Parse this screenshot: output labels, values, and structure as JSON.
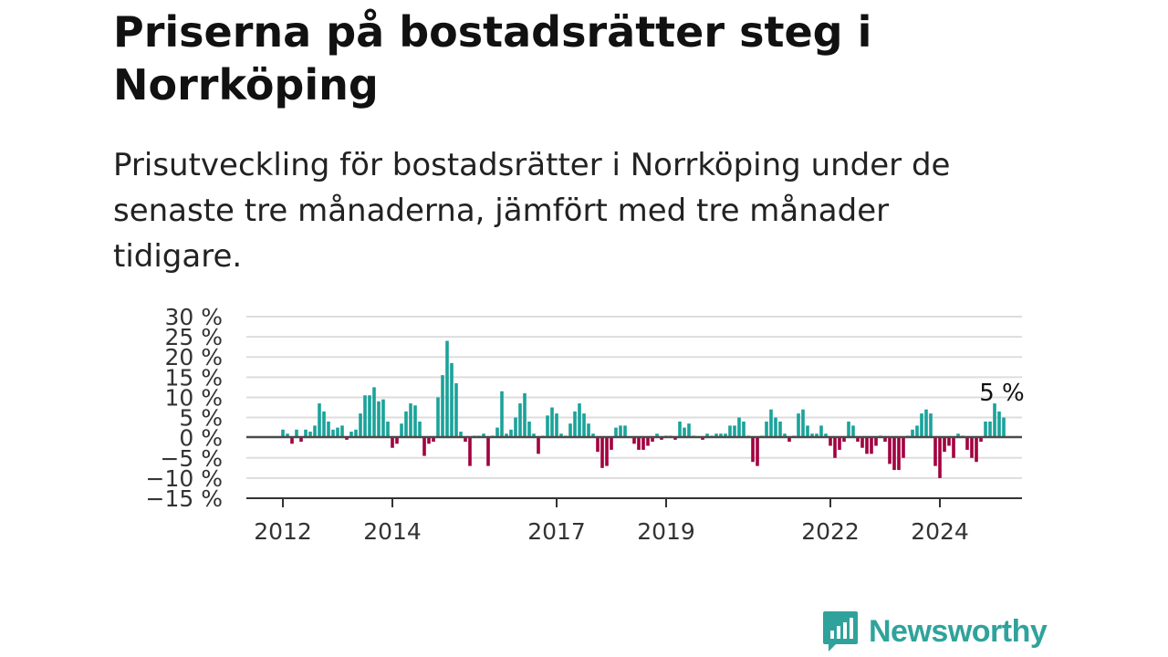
{
  "header": {
    "title": "Priserna på bostadsrätter steg i Norrköping",
    "subtitle": "Prisutveckling för bostadsrätter i Norrköping under de senaste tre månaderna, jämfört med tre månader tidigare."
  },
  "brand": {
    "name": "Newsworthy",
    "color": "#2fa39b",
    "icon": "newsworthy-logo-icon"
  },
  "colors": {
    "positive": "#1aa39a",
    "negative": "#a3003f",
    "grid": "#dddddd",
    "zero_line": "#555555"
  },
  "chart_data": {
    "type": "bar",
    "ylim": [
      -15,
      30
    ],
    "yticks": [
      30,
      25,
      20,
      15,
      10,
      5,
      0,
      -5,
      -10,
      -15
    ],
    "ytick_labels": [
      "30 %",
      "25 %",
      "20 %",
      "15 %",
      "10 %",
      "5 %",
      "0 %",
      "−5 %",
      "−10 %",
      "−15 %"
    ],
    "xticks": [
      {
        "year": 2012,
        "label": "2012"
      },
      {
        "year": 2014,
        "label": "2014"
      },
      {
        "year": 2017,
        "label": "2017"
      },
      {
        "year": 2019,
        "label": "2019"
      },
      {
        "year": 2022,
        "label": "2022"
      },
      {
        "year": 2024,
        "label": "2024"
      }
    ],
    "x_start": "2012-01",
    "annotation": {
      "text": "5 %",
      "value": 5
    },
    "grid": true,
    "values": [
      2,
      1,
      -1.5,
      2,
      -1,
      2,
      1.5,
      3,
      8.5,
      6.5,
      4,
      2,
      2.5,
      3,
      -0.5,
      1.5,
      2,
      6,
      10.5,
      10.5,
      12.5,
      9,
      9.5,
      4,
      -2.5,
      -1.5,
      3.5,
      6.5,
      8.5,
      8,
      4,
      -4.5,
      -1.5,
      -1,
      10,
      15.5,
      24,
      18.5,
      13.5,
      1.5,
      -1,
      -7,
      0.5,
      0.5,
      1,
      -7,
      0.5,
      2.5,
      11.5,
      1,
      2,
      5,
      8.5,
      11,
      4,
      1,
      -4,
      0.5,
      5.5,
      7.5,
      6,
      1,
      0.5,
      3.5,
      6.5,
      8.5,
      6,
      3.5,
      1,
      -3.5,
      -7.5,
      -7,
      -3,
      2.5,
      3,
      3,
      0,
      -1.5,
      -3,
      -3,
      -2,
      -1,
      1,
      -0.5,
      0.5,
      0.5,
      -0.5,
      4,
      2.5,
      3.5,
      0.5,
      0,
      -0.5,
      1,
      0.5,
      1,
      1,
      1,
      3,
      3,
      5,
      4,
      0.5,
      -6,
      -7,
      0.5,
      4,
      7,
      5,
      4,
      1,
      -1,
      0.5,
      6,
      7,
      3,
      1,
      1,
      3,
      1,
      -2,
      -5,
      -3,
      -1,
      4,
      3,
      -1,
      -2.5,
      -4,
      -4,
      -2,
      0.5,
      -1,
      -6.5,
      -8,
      -8,
      -5,
      0.5,
      2,
      3,
      6,
      7,
      6,
      -7,
      -10,
      -3.5,
      -2,
      -5,
      1,
      0.5,
      -3,
      -5,
      -6,
      -1,
      4,
      4,
      8.5,
      6.5,
      5
    ]
  }
}
